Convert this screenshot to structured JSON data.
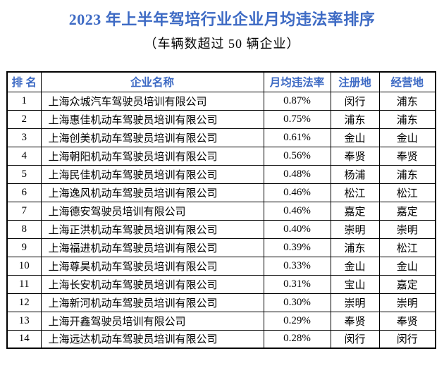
{
  "title": "2023 年上半年驾培行业企业月均违法率排序",
  "subtitle": "（车辆数超过 50 辆企业）",
  "colors": {
    "accent_blue": "#3d6ac4",
    "table_border": "#000000",
    "body_text": "#000000",
    "background": "#ffffff"
  },
  "table": {
    "headers": [
      "排 名",
      "企业名称",
      "月均违法率",
      "注册地",
      "经营地"
    ],
    "rows": [
      {
        "rank": "1",
        "company": "上海众城汽车驾驶员培训有限公司",
        "rate": "0.87%",
        "registered": "闵行",
        "operating": "浦东"
      },
      {
        "rank": "2",
        "company": "上海惠佳机动车驾驶员培训有限公司",
        "rate": "0.75%",
        "registered": "浦东",
        "operating": "浦东"
      },
      {
        "rank": "3",
        "company": "上海创美机动车驾驶员培训有限公司",
        "rate": "0.61%",
        "registered": "金山",
        "operating": "金山"
      },
      {
        "rank": "4",
        "company": "上海朝阳机动车驾驶员培训有限公司",
        "rate": "0.56%",
        "registered": "奉贤",
        "operating": "奉贤"
      },
      {
        "rank": "5",
        "company": "上海民佳机动车驾驶员培训有限公司",
        "rate": "0.48%",
        "registered": "杨浦",
        "operating": "浦东"
      },
      {
        "rank": "6",
        "company": "上海逸风机动车驾驶员培训有限公司",
        "rate": "0.46%",
        "registered": "松江",
        "operating": "松江"
      },
      {
        "rank": "7",
        "company": "上海德安驾驶员培训有限公司",
        "rate": "0.46%",
        "registered": "嘉定",
        "operating": "嘉定"
      },
      {
        "rank": "8",
        "company": "上海正洪机动车驾驶员培训有限公司",
        "rate": "0.40%",
        "registered": "崇明",
        "operating": "崇明"
      },
      {
        "rank": "9",
        "company": "上海福进机动车驾驶员培训有限公司",
        "rate": "0.39%",
        "registered": "浦东",
        "operating": "松江"
      },
      {
        "rank": "10",
        "company": "上海尊昊机动车驾驶员培训有限公司",
        "rate": "0.33%",
        "registered": "金山",
        "operating": "金山"
      },
      {
        "rank": "11",
        "company": "上海长安机动车驾驶员培训有限公司",
        "rate": "0.31%",
        "registered": "宝山",
        "operating": "嘉定"
      },
      {
        "rank": "12",
        "company": "上海新河机动车驾驶员培训有限公司",
        "rate": "0.30%",
        "registered": "崇明",
        "operating": "崇明"
      },
      {
        "rank": "13",
        "company": "上海开鑫驾驶员培训有限公司",
        "rate": "0.29%",
        "registered": "奉贤",
        "operating": "奉贤"
      },
      {
        "rank": "14",
        "company": "上海远达机动车驾驶员培训有限公司",
        "rate": "0.28%",
        "registered": "闵行",
        "operating": "闵行"
      }
    ]
  }
}
